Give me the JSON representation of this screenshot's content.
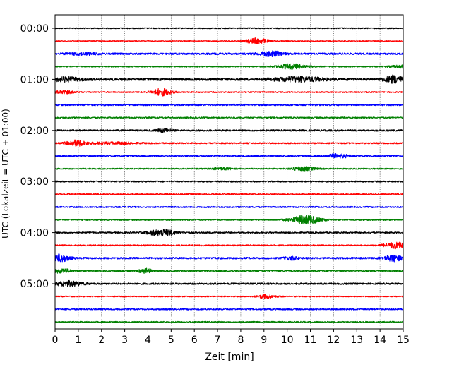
{
  "chart_data": {
    "type": "line",
    "title": "",
    "xlabel": "Zeit  [min]",
    "ylabel": "UTC (Lokalzeit = UTC + 01:00)",
    "xlim": [
      0,
      15
    ],
    "x_ticks": [
      "0",
      "1",
      "2",
      "3",
      "4",
      "5",
      "6",
      "7",
      "8",
      "9",
      "10",
      "11",
      "12",
      "13",
      "14",
      "15"
    ],
    "y_ticks": [
      {
        "label": "00:00",
        "trace": 0
      },
      {
        "label": "01:00",
        "trace": 4
      },
      {
        "label": "02:00",
        "trace": 8
      },
      {
        "label": "03:00",
        "trace": 12
      },
      {
        "label": "04:00",
        "trace": 16
      },
      {
        "label": "05:00",
        "trace": 20
      }
    ],
    "grid": "vertical dotted at each minute",
    "trace_colors": [
      "#000000",
      "#ff0000",
      "#0000ff",
      "#008000"
    ],
    "traces": [
      {
        "start": "00:00",
        "color": "#000000",
        "noise": 0.8,
        "events": []
      },
      {
        "start": "00:15",
        "color": "#ff0000",
        "noise": 0.6,
        "events": [
          [
            8.7,
            0.5,
            4
          ]
        ]
      },
      {
        "start": "00:30",
        "color": "#0000ff",
        "noise": 1.3,
        "events": [
          [
            1.2,
            0.6,
            1.5
          ],
          [
            9.3,
            0.5,
            3.5
          ]
        ]
      },
      {
        "start": "00:45",
        "color": "#008000",
        "noise": 0.9,
        "events": [
          [
            10.2,
            0.6,
            3.5
          ],
          [
            15.0,
            0.5,
            2
          ]
        ]
      },
      {
        "start": "01:00",
        "color": "#000000",
        "noise": 1.8,
        "events": [
          [
            0.5,
            0.6,
            2.5
          ],
          [
            10.5,
            1.0,
            3
          ],
          [
            14.6,
            0.4,
            5
          ]
        ]
      },
      {
        "start": "01:15",
        "color": "#ff0000",
        "noise": 0.9,
        "events": [
          [
            0.4,
            0.4,
            2
          ],
          [
            4.6,
            0.4,
            5
          ]
        ]
      },
      {
        "start": "01:30",
        "color": "#0000ff",
        "noise": 1.2,
        "events": []
      },
      {
        "start": "01:45",
        "color": "#008000",
        "noise": 1.0,
        "events": []
      },
      {
        "start": "02:00",
        "color": "#000000",
        "noise": 1.2,
        "events": [
          [
            4.7,
            0.3,
            2.5
          ]
        ]
      },
      {
        "start": "02:15",
        "color": "#ff0000",
        "noise": 1.0,
        "events": [
          [
            0.9,
            0.4,
            4
          ],
          [
            2.5,
            1.0,
            1.3
          ]
        ]
      },
      {
        "start": "02:30",
        "color": "#0000ff",
        "noise": 1.1,
        "events": [
          [
            12.2,
            0.5,
            2.5
          ]
        ]
      },
      {
        "start": "02:45",
        "color": "#008000",
        "noise": 0.9,
        "events": [
          [
            7.2,
            0.4,
            1.5
          ],
          [
            10.7,
            0.5,
            2.5
          ]
        ]
      },
      {
        "start": "03:00",
        "color": "#000000",
        "noise": 1.0,
        "events": []
      },
      {
        "start": "03:15",
        "color": "#ff0000",
        "noise": 1.0,
        "events": []
      },
      {
        "start": "03:30",
        "color": "#0000ff",
        "noise": 1.0,
        "events": []
      },
      {
        "start": "03:45",
        "color": "#008000",
        "noise": 1.0,
        "events": [
          [
            10.8,
            0.6,
            6
          ]
        ]
      },
      {
        "start": "04:00",
        "color": "#000000",
        "noise": 1.0,
        "events": [
          [
            4.6,
            0.6,
            4.5
          ]
        ]
      },
      {
        "start": "04:15",
        "color": "#ff0000",
        "noise": 1.0,
        "events": [
          [
            14.7,
            0.5,
            4
          ]
        ]
      },
      {
        "start": "04:30",
        "color": "#0000ff",
        "noise": 1.3,
        "events": [
          [
            0.2,
            0.4,
            5
          ],
          [
            10.2,
            0.3,
            2
          ],
          [
            14.6,
            0.4,
            4
          ]
        ]
      },
      {
        "start": "04:45",
        "color": "#008000",
        "noise": 1.0,
        "events": [
          [
            0.3,
            0.4,
            3
          ],
          [
            3.9,
            0.3,
            3
          ]
        ]
      },
      {
        "start": "05:00",
        "color": "#000000",
        "noise": 1.2,
        "events": [
          [
            0.6,
            0.6,
            3.5
          ]
        ]
      },
      {
        "start": "05:15",
        "color": "#ff0000",
        "noise": 0.8,
        "events": [
          [
            9.1,
            0.4,
            2.5
          ]
        ]
      },
      {
        "start": "05:30",
        "color": "#0000ff",
        "noise": 1.0,
        "events": []
      },
      {
        "start": "05:45",
        "color": "#008000",
        "noise": 1.0,
        "events": []
      }
    ]
  }
}
